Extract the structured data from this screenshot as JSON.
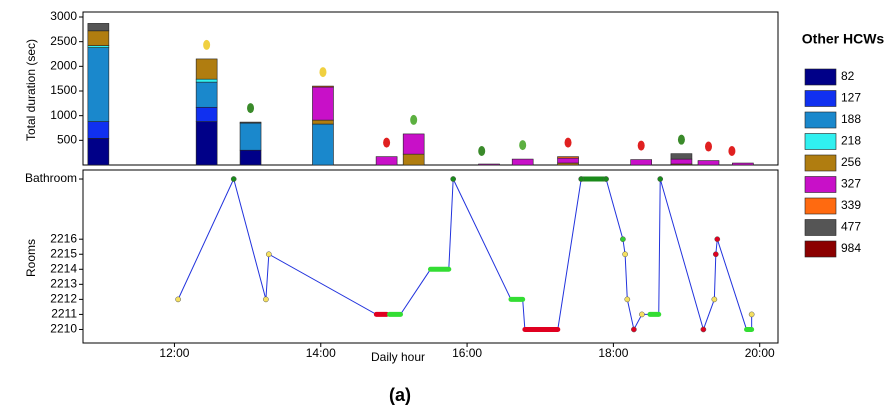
{
  "chart_data": [
    {
      "type": "bar",
      "ylabel": "Total duration (sec)",
      "legend_title": "Other HCWs",
      "xlim": [
        10.75,
        20.25
      ],
      "ylim": [
        0,
        3000
      ],
      "yticks": [
        500,
        1000,
        1500,
        2000,
        2500,
        3000
      ],
      "x": [
        10.96,
        12.44,
        13.04,
        14.03,
        14.9,
        15.27,
        16.3,
        16.76,
        17.38,
        18.38,
        18.93,
        19.3,
        19.77
      ],
      "series": [
        {
          "name": "82",
          "color": "#000088",
          "values": [
            540,
            880,
            300,
            null,
            null,
            null,
            null,
            null,
            null,
            null,
            null,
            null,
            null
          ]
        },
        {
          "name": "127",
          "color": "#1030f0",
          "values": [
            340,
            290,
            null,
            null,
            null,
            null,
            null,
            null,
            null,
            null,
            null,
            null,
            null
          ]
        },
        {
          "name": "188",
          "color": "#1a88cc",
          "values": [
            1500,
            510,
            550,
            830,
            null,
            null,
            null,
            null,
            null,
            null,
            null,
            null,
            null
          ]
        },
        {
          "name": "218",
          "color": "#30f0f0",
          "values": [
            40,
            60,
            null,
            null,
            null,
            null,
            null,
            null,
            null,
            null,
            null,
            null,
            null
          ]
        },
        {
          "name": "256",
          "color": "#b07d10",
          "values": [
            300,
            410,
            null,
            80,
            null,
            220,
            null,
            null,
            40,
            null,
            20,
            null,
            null
          ]
        },
        {
          "name": "327",
          "color": "#c810c8",
          "values": [
            null,
            null,
            null,
            670,
            170,
            410,
            20,
            120,
            100,
            110,
            100,
            90,
            40
          ]
        },
        {
          "name": "339",
          "color": "#ff6a10",
          "values": [
            null,
            null,
            null,
            20,
            null,
            null,
            null,
            null,
            30,
            null,
            null,
            null,
            null
          ]
        },
        {
          "name": "477",
          "color": "#555555",
          "values": [
            150,
            null,
            20,
            null,
            null,
            null,
            null,
            null,
            null,
            null,
            110,
            null,
            null
          ]
        },
        {
          "name": "984",
          "color": "#8b0000",
          "values": [
            null,
            null,
            null,
            null,
            null,
            null,
            null,
            null,
            null,
            null,
            null,
            null,
            null
          ]
        }
      ],
      "status_markers": [
        {
          "x": 12.44,
          "color": "#f0d040"
        },
        {
          "x": 13.04,
          "color": "#3a8a2a"
        },
        {
          "x": 14.03,
          "color": "#f0d040"
        },
        {
          "x": 14.9,
          "color": "#e02020"
        },
        {
          "x": 15.27,
          "color": "#5cb040"
        },
        {
          "x": 16.2,
          "color": "#3a8a2a"
        },
        {
          "x": 16.76,
          "color": "#5cb040"
        },
        {
          "x": 17.38,
          "color": "#e02020"
        },
        {
          "x": 18.38,
          "color": "#e02020"
        },
        {
          "x": 18.93,
          "color": "#3a8a2a"
        },
        {
          "x": 19.3,
          "color": "#e02020"
        },
        {
          "x": 19.62,
          "color": "#e02020"
        }
      ]
    },
    {
      "type": "line",
      "xlabel": "Daily hour",
      "ylabel": "Rooms",
      "caption": "(a)",
      "xlim": [
        10.75,
        20.25
      ],
      "ylim": [
        2209.1,
        2220.6
      ],
      "xticks": [
        {
          "value": 12,
          "label": "12:00"
        },
        {
          "value": 14,
          "label": "14:00"
        },
        {
          "value": 16,
          "label": "16:00"
        },
        {
          "value": 18,
          "label": "18:00"
        },
        {
          "value": 20,
          "label": "20:00"
        }
      ],
      "yticks": [
        2210,
        2211,
        2212,
        2213,
        2214,
        2215,
        2216,
        {
          "value": 2220,
          "label": "Bathroom"
        }
      ],
      "line_color": "#2233dd",
      "x": [
        12.05,
        12.81,
        13.25,
        13.29,
        14.76,
        14.9,
        14.94,
        15.09,
        15.5,
        15.75,
        15.81,
        16.6,
        16.76,
        16.79,
        17.24,
        17.56,
        17.9,
        18.13,
        18.16,
        18.19,
        18.28,
        18.39,
        18.5,
        18.62,
        18.64,
        19.23,
        19.38,
        19.4,
        19.42,
        19.82,
        19.89,
        19.89
      ],
      "values": [
        2212,
        2220,
        2212,
        2215,
        2211,
        2211,
        2211,
        2211,
        2214,
        2214,
        2220,
        2212,
        2212,
        2210,
        2210,
        2220,
        2220,
        2216,
        2215,
        2212,
        2210,
        2211,
        2211,
        2211,
        2220,
        2210,
        2212,
        2215,
        2216,
        2210,
        2210,
        2211
      ],
      "points": {
        "x": [
          12.05,
          12.81,
          13.25,
          13.29,
          15.81,
          17.56,
          17.9,
          18.13,
          18.16,
          18.19,
          18.28,
          18.39,
          18.64,
          19.23,
          19.38,
          19.4,
          19.42,
          19.89
        ],
        "values": [
          2212,
          2220,
          2212,
          2215,
          2220,
          2220,
          2220,
          2216,
          2215,
          2212,
          2210,
          2211,
          2220,
          2210,
          2212,
          2215,
          2216,
          2211
        ],
        "colors": [
          "#f5e060",
          "#1a8a1a",
          "#f5e060",
          "#f5e060",
          "#1a8a1a",
          "#1a8a1a",
          "#1a8a1a",
          "#33cc33",
          "#f5e060",
          "#f5e060",
          "#e00020",
          "#f5e060",
          "#1a8a1a",
          "#e00020",
          "#f5e060",
          "#e00020",
          "#e00020",
          "#f5e060"
        ]
      },
      "stays": [
        {
          "start": 14.76,
          "end": 14.9,
          "y": 2211,
          "color": "#e00020"
        },
        {
          "start": 14.94,
          "end": 15.09,
          "y": 2211,
          "color": "#33dd33"
        },
        {
          "start": 15.5,
          "end": 15.75,
          "y": 2214,
          "color": "#33dd33"
        },
        {
          "start": 16.6,
          "end": 16.76,
          "y": 2212,
          "color": "#33dd33"
        },
        {
          "start": 16.79,
          "end": 17.24,
          "y": 2210,
          "color": "#e00020"
        },
        {
          "start": 17.56,
          "end": 17.9,
          "y": 2220,
          "color": "#1a8a1a"
        },
        {
          "start": 18.5,
          "end": 18.62,
          "y": 2211,
          "color": "#33dd33"
        },
        {
          "start": 19.82,
          "end": 19.89,
          "y": 2210,
          "color": "#33dd33"
        }
      ]
    }
  ]
}
